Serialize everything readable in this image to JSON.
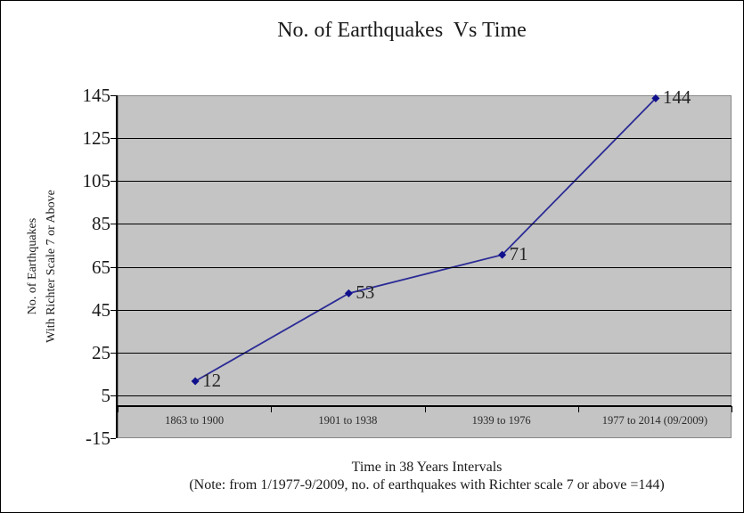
{
  "chart_data": {
    "type": "line",
    "title": "No. of Earthquakes  Vs Time",
    "categories": [
      "1863 to 1900",
      "1901 to 1938",
      "1939 to 1976",
      "1977 to 2014 (09/2009)"
    ],
    "values": [
      12,
      53,
      71,
      144
    ],
    "data_labels": [
      "12",
      "53",
      "71",
      "144"
    ],
    "ylabel_line1": "No. of Earthquakes",
    "ylabel_line2": "With Richter Scale 7 or Above",
    "xlabel": "Time in 38 Years Intervals",
    "note": "(Note: from 1/1977-9/2009, no. of earthquakes with Richter scale 7 or above =144)",
    "ylim": [
      -15,
      145
    ],
    "yticks": [
      145,
      125,
      105,
      85,
      65,
      45,
      25,
      5,
      -15
    ],
    "x_axis_cross": 0,
    "grid": true,
    "legend": "none",
    "marker_style": "diamond",
    "colors": {
      "line": "#2b2b96",
      "marker": "#10108c",
      "plot_bg": "#c4c4c4",
      "plot_border": "#888888",
      "grid": "#000000",
      "axis": "#000000",
      "text": "#1a1a1a",
      "page_bg": "#ffffff",
      "page_border": "#000000"
    }
  }
}
